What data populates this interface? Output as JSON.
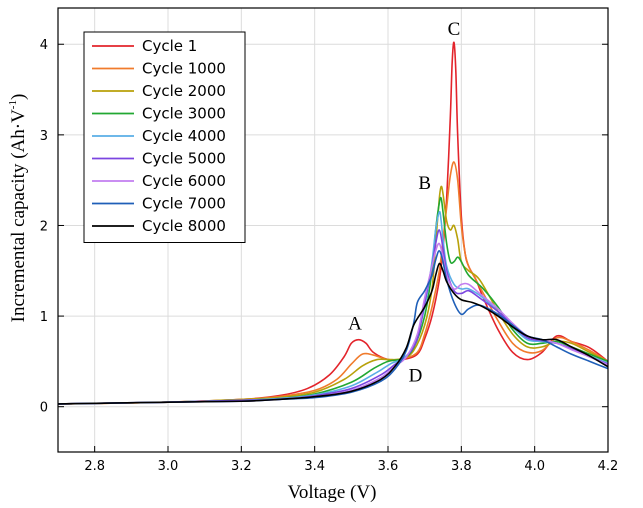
{
  "chart_data": {
    "type": "line",
    "xlabel": "Voltage (V)",
    "ylabel": "Incremental capacity (Ah·V",
    "ylabel_sup": "-1",
    "ylabel_close": ")",
    "xlim": [
      2.7,
      4.2
    ],
    "ylim": [
      -0.5,
      4.4
    ],
    "xticks": [
      "2.8",
      "3.0",
      "3.2",
      "3.4",
      "3.6",
      "3.8",
      "4.0",
      "4.2"
    ],
    "yticks": [
      "0",
      "1",
      "2",
      "3",
      "4"
    ],
    "grid": true,
    "legend_position": "top-left",
    "annotations": [
      {
        "text": "A",
        "x": 3.51,
        "y": 0.85
      },
      {
        "text": "B",
        "x": 3.7,
        "y": 2.4
      },
      {
        "text": "C",
        "x": 3.78,
        "y": 4.1
      },
      {
        "text": "D",
        "x": 3.675,
        "y": 0.28
      }
    ],
    "series": [
      {
        "name": "Cycle 1",
        "color": "#e3242b",
        "points": [
          [
            2.7,
            0.03
          ],
          [
            3.0,
            0.05
          ],
          [
            3.2,
            0.08
          ],
          [
            3.3,
            0.12
          ],
          [
            3.38,
            0.2
          ],
          [
            3.44,
            0.35
          ],
          [
            3.48,
            0.55
          ],
          [
            3.5,
            0.7
          ],
          [
            3.52,
            0.74
          ],
          [
            3.54,
            0.7
          ],
          [
            3.56,
            0.6
          ],
          [
            3.6,
            0.52
          ],
          [
            3.64,
            0.52
          ],
          [
            3.68,
            0.58
          ],
          [
            3.7,
            0.75
          ],
          [
            3.72,
            1.0
          ],
          [
            3.74,
            1.4
          ],
          [
            3.75,
            1.75
          ],
          [
            3.76,
            2.3
          ],
          [
            3.77,
            3.2
          ],
          [
            3.775,
            3.8
          ],
          [
            3.78,
            4.02
          ],
          [
            3.785,
            3.7
          ],
          [
            3.79,
            3.0
          ],
          [
            3.8,
            2.1
          ],
          [
            3.81,
            1.7
          ],
          [
            3.82,
            1.55
          ],
          [
            3.84,
            1.4
          ],
          [
            3.86,
            1.2
          ],
          [
            3.9,
            0.85
          ],
          [
            3.94,
            0.6
          ],
          [
            3.98,
            0.52
          ],
          [
            4.02,
            0.6
          ],
          [
            4.06,
            0.78
          ],
          [
            4.1,
            0.72
          ],
          [
            4.15,
            0.65
          ],
          [
            4.2,
            0.5
          ]
        ]
      },
      {
        "name": "Cycle 1000",
        "color": "#f07b2c",
        "points": [
          [
            2.7,
            0.03
          ],
          [
            3.0,
            0.05
          ],
          [
            3.2,
            0.08
          ],
          [
            3.3,
            0.11
          ],
          [
            3.4,
            0.18
          ],
          [
            3.46,
            0.3
          ],
          [
            3.5,
            0.47
          ],
          [
            3.53,
            0.58
          ],
          [
            3.56,
            0.57
          ],
          [
            3.6,
            0.52
          ],
          [
            3.64,
            0.53
          ],
          [
            3.68,
            0.6
          ],
          [
            3.7,
            0.8
          ],
          [
            3.72,
            1.1
          ],
          [
            3.74,
            1.5
          ],
          [
            3.75,
            1.85
          ],
          [
            3.76,
            2.2
          ],
          [
            3.77,
            2.55
          ],
          [
            3.78,
            2.7
          ],
          [
            3.79,
            2.5
          ],
          [
            3.8,
            2.0
          ],
          [
            3.81,
            1.7
          ],
          [
            3.82,
            1.55
          ],
          [
            3.84,
            1.4
          ],
          [
            3.86,
            1.25
          ],
          [
            3.9,
            0.95
          ],
          [
            3.94,
            0.7
          ],
          [
            3.98,
            0.6
          ],
          [
            4.02,
            0.62
          ],
          [
            4.06,
            0.76
          ],
          [
            4.1,
            0.72
          ],
          [
            4.15,
            0.62
          ],
          [
            4.2,
            0.5
          ]
        ]
      },
      {
        "name": "Cycle 2000",
        "color": "#b8a10a",
        "points": [
          [
            2.7,
            0.03
          ],
          [
            3.0,
            0.05
          ],
          [
            3.2,
            0.08
          ],
          [
            3.3,
            0.1
          ],
          [
            3.4,
            0.16
          ],
          [
            3.48,
            0.3
          ],
          [
            3.53,
            0.45
          ],
          [
            3.57,
            0.52
          ],
          [
            3.6,
            0.52
          ],
          [
            3.64,
            0.53
          ],
          [
            3.67,
            0.62
          ],
          [
            3.7,
            0.9
          ],
          [
            3.72,
            1.3
          ],
          [
            3.73,
            1.8
          ],
          [
            3.74,
            2.3
          ],
          [
            3.745,
            2.43
          ],
          [
            3.75,
            2.35
          ],
          [
            3.76,
            2.05
          ],
          [
            3.77,
            1.95
          ],
          [
            3.78,
            2.0
          ],
          [
            3.79,
            1.85
          ],
          [
            3.8,
            1.6
          ],
          [
            3.82,
            1.5
          ],
          [
            3.85,
            1.4
          ],
          [
            3.9,
            1.05
          ],
          [
            3.94,
            0.8
          ],
          [
            3.98,
            0.66
          ],
          [
            4.02,
            0.66
          ],
          [
            4.06,
            0.72
          ],
          [
            4.1,
            0.7
          ],
          [
            4.15,
            0.6
          ],
          [
            4.2,
            0.5
          ]
        ]
      },
      {
        "name": "Cycle 3000",
        "color": "#22a832",
        "points": [
          [
            2.7,
            0.03
          ],
          [
            3.0,
            0.05
          ],
          [
            3.2,
            0.07
          ],
          [
            3.3,
            0.09
          ],
          [
            3.4,
            0.14
          ],
          [
            3.5,
            0.27
          ],
          [
            3.56,
            0.42
          ],
          [
            3.6,
            0.5
          ],
          [
            3.64,
            0.53
          ],
          [
            3.67,
            0.65
          ],
          [
            3.7,
            1.0
          ],
          [
            3.72,
            1.5
          ],
          [
            3.73,
            1.95
          ],
          [
            3.74,
            2.25
          ],
          [
            3.745,
            2.3
          ],
          [
            3.75,
            2.15
          ],
          [
            3.76,
            1.8
          ],
          [
            3.77,
            1.6
          ],
          [
            3.78,
            1.6
          ],
          [
            3.79,
            1.65
          ],
          [
            3.8,
            1.6
          ],
          [
            3.82,
            1.45
          ],
          [
            3.86,
            1.3
          ],
          [
            3.9,
            1.1
          ],
          [
            3.94,
            0.85
          ],
          [
            3.98,
            0.7
          ],
          [
            4.02,
            0.7
          ],
          [
            4.06,
            0.72
          ],
          [
            4.1,
            0.66
          ],
          [
            4.15,
            0.58
          ],
          [
            4.2,
            0.5
          ]
        ]
      },
      {
        "name": "Cycle 4000",
        "color": "#5aaee6",
        "points": [
          [
            2.7,
            0.03
          ],
          [
            3.0,
            0.05
          ],
          [
            3.2,
            0.07
          ],
          [
            3.3,
            0.09
          ],
          [
            3.4,
            0.13
          ],
          [
            3.5,
            0.23
          ],
          [
            3.57,
            0.38
          ],
          [
            3.61,
            0.48
          ],
          [
            3.64,
            0.53
          ],
          [
            3.67,
            0.68
          ],
          [
            3.7,
            1.1
          ],
          [
            3.72,
            1.6
          ],
          [
            3.73,
            1.95
          ],
          [
            3.74,
            2.15
          ],
          [
            3.745,
            2.05
          ],
          [
            3.75,
            1.85
          ],
          [
            3.76,
            1.55
          ],
          [
            3.78,
            1.35
          ],
          [
            3.8,
            1.3
          ],
          [
            3.82,
            1.3
          ],
          [
            3.86,
            1.2
          ],
          [
            3.9,
            1.05
          ],
          [
            3.94,
            0.88
          ],
          [
            3.98,
            0.74
          ],
          [
            4.02,
            0.72
          ],
          [
            4.06,
            0.7
          ],
          [
            4.1,
            0.64
          ],
          [
            4.15,
            0.56
          ],
          [
            4.2,
            0.48
          ]
        ]
      },
      {
        "name": "Cycle 5000",
        "color": "#7b45e0",
        "points": [
          [
            2.7,
            0.03
          ],
          [
            3.0,
            0.05
          ],
          [
            3.2,
            0.07
          ],
          [
            3.3,
            0.08
          ],
          [
            3.4,
            0.12
          ],
          [
            3.5,
            0.2
          ],
          [
            3.58,
            0.35
          ],
          [
            3.62,
            0.47
          ],
          [
            3.65,
            0.55
          ],
          [
            3.68,
            0.75
          ],
          [
            3.7,
            1.15
          ],
          [
            3.72,
            1.55
          ],
          [
            3.73,
            1.8
          ],
          [
            3.74,
            1.95
          ],
          [
            3.75,
            1.75
          ],
          [
            3.76,
            1.5
          ],
          [
            3.78,
            1.28
          ],
          [
            3.8,
            1.25
          ],
          [
            3.82,
            1.28
          ],
          [
            3.85,
            1.2
          ],
          [
            3.9,
            1.05
          ],
          [
            3.94,
            0.9
          ],
          [
            3.98,
            0.76
          ],
          [
            4.02,
            0.73
          ],
          [
            4.06,
            0.7
          ],
          [
            4.1,
            0.64
          ],
          [
            4.15,
            0.55
          ],
          [
            4.2,
            0.47
          ]
        ]
      },
      {
        "name": "Cycle 6000",
        "color": "#c27ef0",
        "points": [
          [
            2.7,
            0.03
          ],
          [
            3.0,
            0.05
          ],
          [
            3.2,
            0.06
          ],
          [
            3.3,
            0.08
          ],
          [
            3.4,
            0.11
          ],
          [
            3.5,
            0.18
          ],
          [
            3.58,
            0.32
          ],
          [
            3.62,
            0.45
          ],
          [
            3.65,
            0.55
          ],
          [
            3.68,
            0.8
          ],
          [
            3.7,
            1.2
          ],
          [
            3.72,
            1.55
          ],
          [
            3.73,
            1.72
          ],
          [
            3.74,
            1.8
          ],
          [
            3.75,
            1.65
          ],
          [
            3.76,
            1.45
          ],
          [
            3.78,
            1.3
          ],
          [
            3.8,
            1.35
          ],
          [
            3.82,
            1.35
          ],
          [
            3.85,
            1.25
          ],
          [
            3.9,
            1.08
          ],
          [
            3.94,
            0.92
          ],
          [
            3.98,
            0.78
          ],
          [
            4.02,
            0.74
          ],
          [
            4.06,
            0.7
          ],
          [
            4.1,
            0.63
          ],
          [
            4.15,
            0.55
          ],
          [
            4.2,
            0.46
          ]
        ]
      },
      {
        "name": "Cycle 7000",
        "color": "#1f5fb8",
        "points": [
          [
            2.7,
            0.03
          ],
          [
            3.0,
            0.05
          ],
          [
            3.2,
            0.06
          ],
          [
            3.3,
            0.08
          ],
          [
            3.4,
            0.1
          ],
          [
            3.5,
            0.16
          ],
          [
            3.58,
            0.28
          ],
          [
            3.62,
            0.42
          ],
          [
            3.65,
            0.62
          ],
          [
            3.67,
            0.92
          ],
          [
            3.68,
            1.15
          ],
          [
            3.7,
            1.28
          ],
          [
            3.72,
            1.45
          ],
          [
            3.73,
            1.62
          ],
          [
            3.74,
            1.72
          ],
          [
            3.75,
            1.6
          ],
          [
            3.76,
            1.4
          ],
          [
            3.78,
            1.15
          ],
          [
            3.8,
            1.02
          ],
          [
            3.82,
            1.08
          ],
          [
            3.85,
            1.12
          ],
          [
            3.9,
            1.02
          ],
          [
            3.94,
            0.9
          ],
          [
            3.98,
            0.78
          ],
          [
            4.02,
            0.74
          ],
          [
            4.06,
            0.66
          ],
          [
            4.1,
            0.58
          ],
          [
            4.15,
            0.5
          ],
          [
            4.2,
            0.42
          ]
        ]
      },
      {
        "name": "Cycle 8000",
        "color": "#000000",
        "points": [
          [
            2.7,
            0.03
          ],
          [
            3.0,
            0.05
          ],
          [
            3.2,
            0.06
          ],
          [
            3.3,
            0.08
          ],
          [
            3.4,
            0.11
          ],
          [
            3.5,
            0.17
          ],
          [
            3.58,
            0.3
          ],
          [
            3.62,
            0.45
          ],
          [
            3.65,
            0.65
          ],
          [
            3.67,
            0.9
          ],
          [
            3.7,
            1.1
          ],
          [
            3.72,
            1.28
          ],
          [
            3.73,
            1.45
          ],
          [
            3.74,
            1.58
          ],
          [
            3.75,
            1.5
          ],
          [
            3.76,
            1.38
          ],
          [
            3.78,
            1.25
          ],
          [
            3.8,
            1.18
          ],
          [
            3.83,
            1.15
          ],
          [
            3.86,
            1.1
          ],
          [
            3.9,
            1.0
          ],
          [
            3.94,
            0.88
          ],
          [
            3.98,
            0.78
          ],
          [
            4.02,
            0.74
          ],
          [
            4.06,
            0.74
          ],
          [
            4.1,
            0.66
          ],
          [
            4.15,
            0.56
          ],
          [
            4.2,
            0.44
          ]
        ]
      }
    ]
  }
}
